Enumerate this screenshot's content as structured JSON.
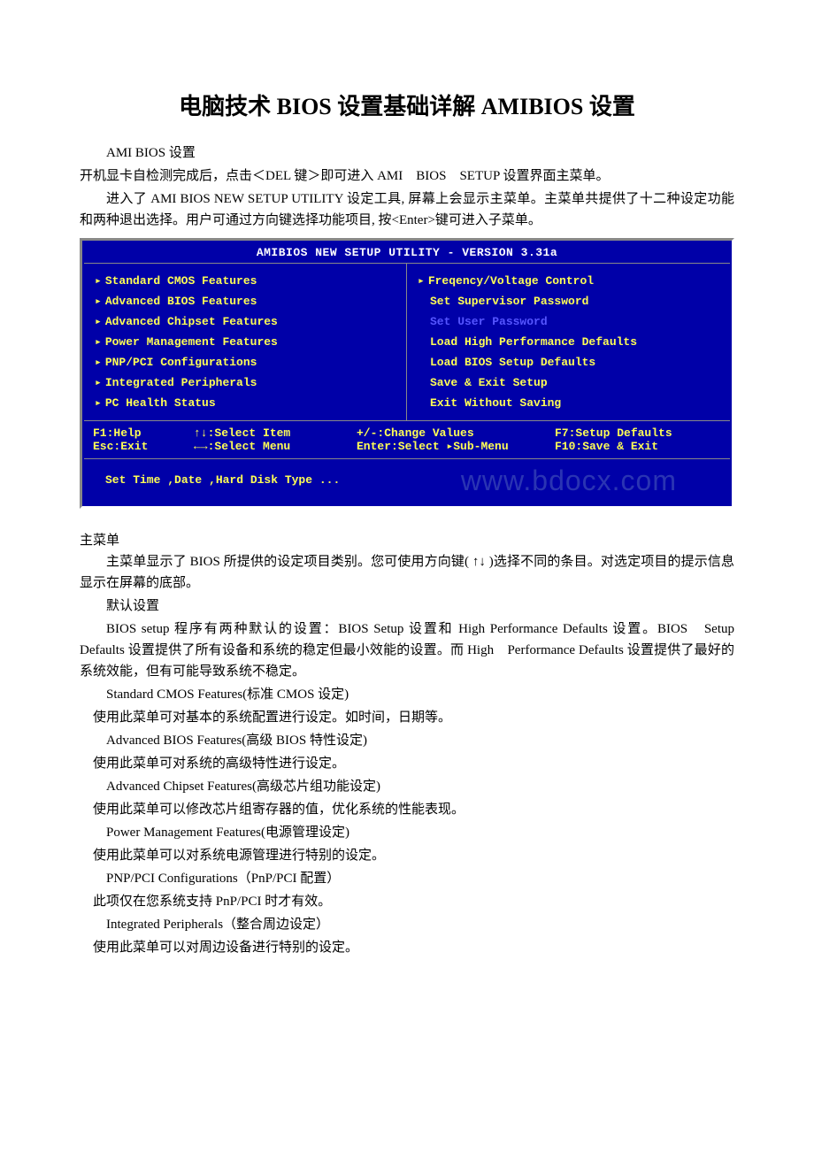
{
  "title": "电脑技术 BIOS 设置基础详解 AMIBIOS 设置",
  "intro": {
    "p1": "AMI BIOS 设置",
    "p2": "开机显卡自检测完成后，点击＜DEL 键＞即可进入 AMI　BIOS　SETUP 设置界面主菜单。",
    "p3": "进入了 AMI BIOS NEW SETUP UTILITY 设定工具, 屏幕上会显示主菜单。主菜单共提供了十二种设定功能和两种退出选择。用户可通过方向键选择功能项目, 按<Enter>键可进入子菜单。"
  },
  "bios": {
    "header": "AMIBIOS NEW SETUP UTILITY - VERSION 3.31a",
    "left_items": [
      "Standard CMOS Features",
      "Advanced BIOS Features",
      "Advanced Chipset Features",
      "Power Management Features",
      "PNP/PCI Configurations",
      "Integrated Peripherals",
      "PC Health Status"
    ],
    "right_items": [
      {
        "text": "Freqency/Voltage Control",
        "has_arrow": true
      },
      {
        "text": "Set Supervisor Password",
        "has_arrow": false,
        "indent": true
      },
      {
        "text": "Set User Password",
        "has_arrow": false,
        "indent": true,
        "highlight": true
      },
      {
        "text": "Load High Performance Defaults",
        "has_arrow": false,
        "indent": true
      },
      {
        "text": "Load BIOS Setup Defaults",
        "has_arrow": false,
        "indent": true
      },
      {
        "text": "Save & Exit Setup",
        "has_arrow": false,
        "indent": true
      },
      {
        "text": "Exit Without Saving",
        "has_arrow": false,
        "indent": true
      }
    ],
    "hints": {
      "l1a": "F1:Help",
      "l1b": "↑↓:Select Item",
      "l1c": "+/-:Change Values",
      "l1d": "F7:Setup Defaults",
      "l2a": "Esc:Exit",
      "l2b": "←→:Select Menu",
      "l2c": "Enter:Select ▸Sub-Menu",
      "l2d": "F10:Save & Exit"
    },
    "footer": "Set Time ,Date ,Hard Disk Type ...",
    "watermark": "www.bdocx.com",
    "colors": {
      "bg": "#0000a8",
      "text_yellow": "#ffff55",
      "text_white": "#ffffff",
      "highlight_blue": "#5555ff",
      "border": "#888888"
    }
  },
  "body": {
    "s1": "主菜单",
    "s2": "主菜单显示了 BIOS 所提供的设定项目类别。您可使用方向键( ↑↓ )选择不同的条目。对选定项目的提示信息显示在屏幕的底部。",
    "s3": "默认设置",
    "s4": "BIOS setup 程序有两种默认的设置：BIOS Setup 设置和 High Performance Defaults 设置。BIOS　Setup Defaults 设置提供了所有设备和系统的稳定但最小效能的设置。而 High　Performance Defaults 设置提供了最好的系统效能，但有可能导致系统不稳定。",
    "s5": "Standard CMOS Features(标准 CMOS 设定)",
    "s5d": "使用此菜单可对基本的系统配置进行设定。如时间，日期等。",
    "s6": "Advanced BIOS Features(高级 BIOS 特性设定)",
    "s6d": "使用此菜单可对系统的高级特性进行设定。",
    "s7": "Advanced Chipset Features(高级芯片组功能设定)",
    "s7d": "使用此菜单可以修改芯片组寄存器的值，优化系统的性能表现。",
    "s8": "Power Management Features(电源管理设定)",
    "s8d": "使用此菜单可以对系统电源管理进行特别的设定。",
    "s9": "PNP/PCI Configurations（PnP/PCI 配置）",
    "s9d": "此项仅在您系统支持 PnP/PCI 时才有效。",
    "s10": "Integrated Peripherals（整合周边设定）",
    "s10d": "使用此菜单可以对周边设备进行特别的设定。"
  }
}
